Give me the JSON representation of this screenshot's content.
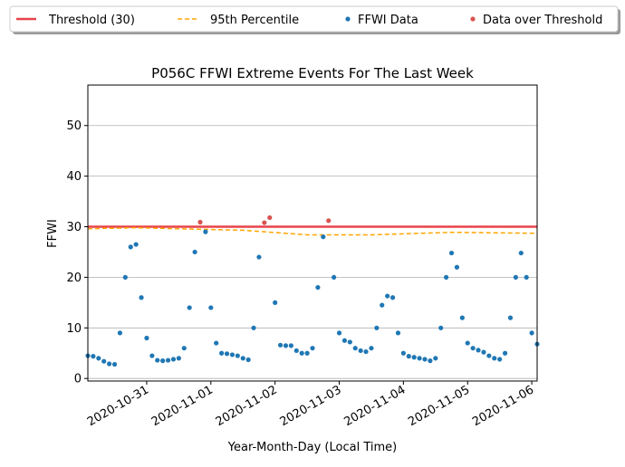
{
  "chart_data": {
    "type": "scatter",
    "title": "P056C FFWI Extreme Events For The Last Week",
    "x_label": "Year-Month-Day (Local Time)",
    "y_label": "FFWI",
    "xlim": [
      "2020-10-30 02:00",
      "2020-11-06 02:00"
    ],
    "xticks": [
      "2020-10-31",
      "2020-11-01",
      "2020-11-02",
      "2020-11-03",
      "2020-11-04",
      "2020-11-05",
      "2020-11-06"
    ],
    "ylim": [
      -0.5,
      58
    ],
    "yticks": [
      0,
      10,
      20,
      30,
      40,
      50
    ],
    "grid": "y",
    "legend": "above",
    "series": [
      {
        "name": "Threshold (30)",
        "kind": "line",
        "color": "#e8434a",
        "x": [
          "2020-10-30 02:00",
          "2020-11-06 02:00"
        ],
        "values": [
          30,
          30
        ]
      },
      {
        "name": "95th Percentile",
        "kind": "dashed-line",
        "color": "#ffa500",
        "x": [
          "2020-10-30 02:00",
          "2020-10-30 20:00",
          "2020-11-01 12:00",
          "2020-11-02 12:00",
          "2020-11-03 12:00",
          "2020-11-04 18:00",
          "2020-11-06 02:00"
        ],
        "values": [
          29.6,
          29.8,
          29.3,
          28.4,
          28.4,
          28.9,
          28.7
        ]
      },
      {
        "name": "FFWI Data",
        "kind": "scatter",
        "color": "#1f77b4",
        "x": [
          "2020-10-30 02:00",
          "2020-10-30 04:00",
          "2020-10-30 06:00",
          "2020-10-30 08:00",
          "2020-10-30 10:00",
          "2020-10-30 12:00",
          "2020-10-30 14:00",
          "2020-10-30 16:00",
          "2020-10-30 18:00",
          "2020-10-30 20:00",
          "2020-10-30 22:00",
          "2020-10-31 00:00",
          "2020-10-31 02:00",
          "2020-10-31 04:00",
          "2020-10-31 06:00",
          "2020-10-31 08:00",
          "2020-10-31 10:00",
          "2020-10-31 12:00",
          "2020-10-31 14:00",
          "2020-10-31 16:00",
          "2020-10-31 18:00",
          "2020-10-31 20:00",
          "2020-10-31 22:00",
          "2020-11-01 00:00",
          "2020-11-01 02:00",
          "2020-11-01 04:00",
          "2020-11-01 06:00",
          "2020-11-01 08:00",
          "2020-11-01 10:00",
          "2020-11-01 12:00",
          "2020-11-01 14:00",
          "2020-11-01 16:00",
          "2020-11-01 18:00",
          "2020-11-01 20:00",
          "2020-11-01 22:00",
          "2020-11-02 00:00",
          "2020-11-02 02:00",
          "2020-11-02 04:00",
          "2020-11-02 06:00",
          "2020-11-02 08:00",
          "2020-11-02 10:00",
          "2020-11-02 12:00",
          "2020-11-02 14:00",
          "2020-11-02 16:00",
          "2020-11-02 18:00",
          "2020-11-02 20:00",
          "2020-11-02 22:00",
          "2020-11-03 00:00",
          "2020-11-03 02:00",
          "2020-11-03 04:00",
          "2020-11-03 06:00",
          "2020-11-03 08:00",
          "2020-11-03 10:00",
          "2020-11-03 12:00",
          "2020-11-03 14:00",
          "2020-11-03 16:00",
          "2020-11-03 18:00",
          "2020-11-03 20:00",
          "2020-11-03 22:00",
          "2020-11-04 00:00",
          "2020-11-04 02:00",
          "2020-11-04 04:00",
          "2020-11-04 06:00",
          "2020-11-04 08:00",
          "2020-11-04 10:00",
          "2020-11-04 12:00",
          "2020-11-04 14:00",
          "2020-11-04 16:00",
          "2020-11-04 18:00",
          "2020-11-04 20:00",
          "2020-11-04 22:00",
          "2020-11-05 00:00",
          "2020-11-05 02:00",
          "2020-11-05 04:00",
          "2020-11-05 06:00",
          "2020-11-05 08:00",
          "2020-11-05 10:00",
          "2020-11-05 12:00",
          "2020-11-05 14:00",
          "2020-11-05 16:00",
          "2020-11-05 18:00",
          "2020-11-05 20:00",
          "2020-11-05 22:00",
          "2020-11-06 00:00",
          "2020-11-06 02:00"
        ],
        "values": [
          4.5,
          4.4,
          4.0,
          3.4,
          2.9,
          2.8,
          9,
          20,
          26,
          26.5,
          16,
          8,
          4.5,
          3.6,
          3.5,
          3.6,
          3.8,
          4.0,
          6,
          14,
          25,
          null,
          29,
          14,
          7,
          5,
          4.9,
          4.7,
          4.5,
          4.0,
          3.7,
          10,
          24,
          null,
          null,
          15,
          6.6,
          6.5,
          6.5,
          5.5,
          5.0,
          5.0,
          6,
          18,
          28,
          null,
          20,
          9,
          7.5,
          7.2,
          6,
          5.5,
          5.3,
          6,
          10,
          14.5,
          16.3,
          16,
          9,
          5,
          4.4,
          4.2,
          4.0,
          3.8,
          3.5,
          4,
          10,
          20,
          24.8,
          22,
          12,
          7,
          6,
          5.6,
          5.2,
          4.5,
          4.0,
          3.8,
          5,
          12,
          20,
          24.8,
          20,
          9,
          6.8
        ]
      },
      {
        "name": "Data over Threshold",
        "kind": "scatter",
        "color": "#d9534f",
        "x": [
          "2020-10-31 20:00",
          "2020-11-01 20:00",
          "2020-11-01 22:00",
          "2020-11-02 20:00"
        ],
        "values": [
          30.9,
          30.8,
          31.8,
          31.2
        ]
      }
    ]
  }
}
